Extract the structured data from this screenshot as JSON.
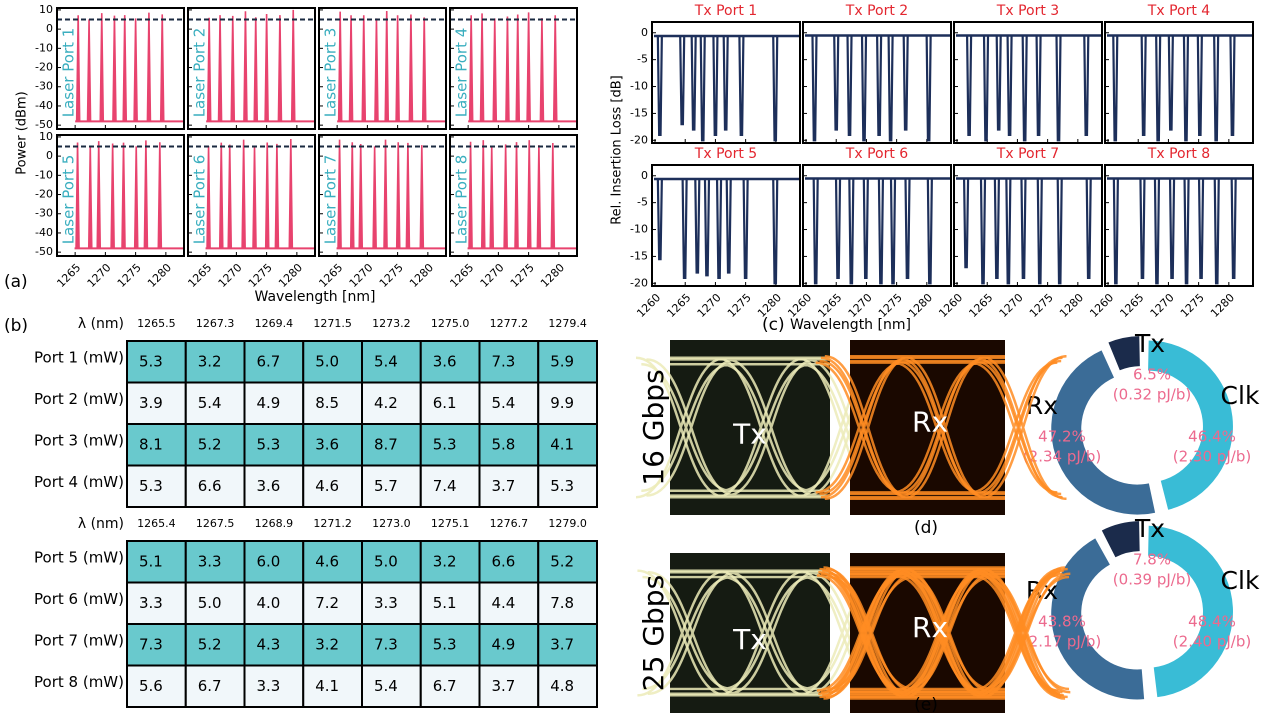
{
  "panels": {
    "a": {
      "label": "(a)",
      "ylabel": "Power (dBm)",
      "xlabel": "Wavelength [nm]"
    },
    "c": {
      "label": "(c)",
      "ylabel": "Rel. Insertion Loss [dB]",
      "xlabel": "Wavelength [nm]"
    }
  },
  "chart_data": [
    {
      "type": "spectrum",
      "label": "Laser Port 1",
      "x": [
        1265.5,
        1267.3,
        1269.4,
        1271.5,
        1273.2,
        1275.0,
        1277.2,
        1279.4
      ],
      "values": [
        7.2,
        5.1,
        8.3,
        7.0,
        7.3,
        5.6,
        8.6,
        7.7
      ],
      "noise_floor": -48,
      "hline": 5,
      "color": "#e8436e",
      "xlim": [
        1262,
        1283
      ],
      "ylim": [
        -52,
        11
      ],
      "xticks": [
        1265,
        1270,
        1275,
        1280
      ],
      "yticks": [
        -50,
        -40,
        -30,
        -20,
        -10,
        0,
        10
      ]
    },
    {
      "type": "spectrum",
      "label": "Laser Port 2",
      "x": [
        1265.5,
        1267.3,
        1269.4,
        1271.5,
        1273.2,
        1275.0,
        1277.2,
        1279.4
      ],
      "values": [
        5.9,
        7.3,
        6.9,
        9.3,
        6.2,
        7.9,
        7.3,
        10
      ],
      "noise_floor": -48,
      "hline": 5,
      "color": "#e8436e",
      "xlim": [
        1262,
        1283
      ],
      "ylim": [
        -52,
        11
      ],
      "xticks": [
        1265,
        1270,
        1275,
        1280
      ],
      "yticks": [
        -50,
        -40,
        -30,
        -20,
        -10,
        0,
        10
      ]
    },
    {
      "type": "spectrum",
      "label": "Laser Port 3",
      "x": [
        1265.5,
        1267.3,
        1269.4,
        1271.5,
        1273.2,
        1275.0,
        1277.2,
        1279.4
      ],
      "values": [
        9.1,
        7.2,
        7.2,
        5.6,
        9.4,
        7.2,
        7.6,
        6.1
      ],
      "noise_floor": -48,
      "hline": 5,
      "color": "#e8436e",
      "xlim": [
        1262,
        1283
      ],
      "ylim": [
        -52,
        11
      ],
      "xticks": [
        1265,
        1270,
        1275,
        1280
      ],
      "yticks": [
        -50,
        -40,
        -30,
        -20,
        -10,
        0,
        10
      ]
    },
    {
      "type": "spectrum",
      "label": "Laser Port 4",
      "x": [
        1265.5,
        1267.3,
        1269.4,
        1271.5,
        1273.2,
        1275.0,
        1277.2,
        1279.4
      ],
      "values": [
        7.2,
        8.2,
        5.6,
        6.6,
        7.6,
        8.7,
        5.7,
        7.2
      ],
      "noise_floor": -48,
      "hline": 5,
      "color": "#e8436e",
      "xlim": [
        1262,
        1283
      ],
      "ylim": [
        -52,
        11
      ],
      "xticks": [
        1265,
        1270,
        1275,
        1280
      ],
      "yticks": [
        -50,
        -40,
        -30,
        -20,
        -10,
        0,
        10
      ]
    },
    {
      "type": "spectrum",
      "label": "Laser Port 5",
      "x": [
        1265.4,
        1267.5,
        1268.9,
        1271.2,
        1273.0,
        1275.1,
        1276.7,
        1279.0
      ],
      "values": [
        7.1,
        5.2,
        7.8,
        6.6,
        7.0,
        5.1,
        8.2,
        7.2
      ],
      "noise_floor": -48,
      "hline": 5,
      "color": "#e8436e",
      "xlim": [
        1262,
        1283
      ],
      "ylim": [
        -52,
        11
      ],
      "xticks": [
        1265,
        1270,
        1275,
        1280
      ],
      "yticks": [
        -50,
        -40,
        -30,
        -20,
        -10,
        0,
        10
      ]
    },
    {
      "type": "spectrum",
      "label": "Laser Port 6",
      "x": [
        1265.4,
        1267.5,
        1268.9,
        1271.2,
        1273.0,
        1275.1,
        1276.7,
        1279.0
      ],
      "values": [
        5.2,
        7.0,
        6.0,
        8.6,
        5.2,
        7.1,
        6.4,
        8.9
      ],
      "noise_floor": -48,
      "hline": 5,
      "color": "#e8436e",
      "xlim": [
        1262,
        1283
      ],
      "ylim": [
        -52,
        11
      ],
      "xticks": [
        1265,
        1270,
        1275,
        1280
      ],
      "yticks": [
        -50,
        -40,
        -30,
        -20,
        -10,
        0,
        10
      ]
    },
    {
      "type": "spectrum",
      "label": "Laser Port 7",
      "x": [
        1265.4,
        1267.5,
        1268.9,
        1271.2,
        1273.0,
        1275.1,
        1276.7,
        1279.0
      ],
      "values": [
        8.6,
        7.2,
        6.3,
        5.1,
        8.6,
        7.2,
        6.9,
        5.7
      ],
      "noise_floor": -48,
      "hline": 5,
      "color": "#e8436e",
      "xlim": [
        1262,
        1283
      ],
      "ylim": [
        -52,
        11
      ],
      "xticks": [
        1265,
        1270,
        1275,
        1280
      ],
      "yticks": [
        -50,
        -40,
        -30,
        -20,
        -10,
        0,
        10
      ]
    },
    {
      "type": "spectrum",
      "label": "Laser Port 8",
      "x": [
        1265.4,
        1267.5,
        1268.9,
        1271.2,
        1273.0,
        1275.1,
        1276.7,
        1279.0
      ],
      "values": [
        7.5,
        8.3,
        5.2,
        6.1,
        7.3,
        8.3,
        5.7,
        6.8
      ],
      "noise_floor": -48,
      "hline": 5,
      "color": "#e8436e",
      "xlim": [
        1262,
        1283
      ],
      "ylim": [
        -52,
        11
      ],
      "xticks": [
        1265,
        1270,
        1275,
        1280
      ],
      "yticks": [
        -50,
        -40,
        -30,
        -20,
        -10,
        0,
        10
      ]
    },
    {
      "type": "dips",
      "title": "Tx Port 1",
      "x": [
        1260.8,
        1264.5,
        1266.4,
        1267.9,
        1270.0,
        1271.7,
        1274.3,
        1279.9
      ],
      "values": [
        -19,
        -17,
        -18,
        -20,
        -19,
        -18,
        -19,
        -20
      ],
      "baseline": -0.6,
      "color": "#1d2f5a",
      "xlim": [
        1259.5,
        1284
      ],
      "ylim": [
        -20.5,
        2
      ],
      "xticks": [
        1260,
        1265,
        1270,
        1275,
        1280
      ],
      "yticks": [
        0,
        -5,
        -10,
        -15,
        -20
      ]
    },
    {
      "type": "dips",
      "title": "Tx Port 2",
      "x": [
        1261.4,
        1265.0,
        1267.2,
        1269.6,
        1272.1,
        1274.0,
        1276.5,
        1280.3
      ],
      "values": [
        -20,
        -18,
        -19,
        -20,
        -19,
        -20,
        -18,
        -20
      ],
      "baseline": -0.5,
      "color": "#1d2f5a",
      "xlim": [
        1259.5,
        1284
      ],
      "ylim": [
        -20.5,
        2
      ],
      "xticks": [
        1260,
        1265,
        1270,
        1275,
        1280
      ],
      "yticks": [
        0,
        -5,
        -10,
        -15,
        -20
      ]
    },
    {
      "type": "dips",
      "title": "Tx Port 3",
      "x": [
        1262.0,
        1264.8,
        1266.9,
        1268.7,
        1271.2,
        1273.5,
        1276.8,
        1281.4
      ],
      "values": [
        -19,
        -20,
        -18,
        -19,
        -20,
        -19,
        -20,
        -19
      ],
      "baseline": -0.5,
      "color": "#1d2f5a",
      "xlim": [
        1259.5,
        1284
      ],
      "ylim": [
        -20.5,
        2
      ],
      "xticks": [
        1260,
        1265,
        1270,
        1275,
        1280
      ],
      "yticks": [
        0,
        -5,
        -10,
        -15,
        -20
      ]
    },
    {
      "type": "dips",
      "title": "Tx Port 4",
      "x": [
        1261.2,
        1265.9,
        1268.3,
        1270.4,
        1272.9,
        1275.2,
        1277.9,
        1280.6
      ],
      "values": [
        -20,
        -19,
        -20,
        -18,
        -20,
        -19,
        -20,
        -19
      ],
      "baseline": -0.5,
      "color": "#1d2f5a",
      "xlim": [
        1259.5,
        1284
      ],
      "ylim": [
        -20.5,
        2
      ],
      "xticks": [
        1260,
        1265,
        1270,
        1275,
        1280
      ],
      "yticks": [
        0,
        -5,
        -10,
        -15,
        -20
      ]
    },
    {
      "type": "dips",
      "title": "Tx Port 5",
      "x": [
        1260.8,
        1264.9,
        1267.0,
        1268.6,
        1270.6,
        1272.2,
        1275.0,
        1279.9
      ],
      "values": [
        -15.5,
        -19,
        -18,
        -18.5,
        -19,
        -18,
        -19,
        -20
      ],
      "baseline": -0.6,
      "color": "#1d2f5a",
      "xlim": [
        1259.5,
        1284
      ],
      "ylim": [
        -20.5,
        2
      ],
      "xticks": [
        1260,
        1265,
        1270,
        1275,
        1280
      ],
      "yticks": [
        0,
        -5,
        -10,
        -15,
        -20
      ]
    },
    {
      "type": "dips",
      "title": "Tx Port 6",
      "x": [
        1261.6,
        1265.3,
        1267.5,
        1269.9,
        1272.4,
        1274.4,
        1276.8,
        1280.5
      ],
      "values": [
        -20,
        -19,
        -20,
        -19,
        -20,
        -20,
        -19,
        -20
      ],
      "baseline": -0.5,
      "color": "#1d2f5a",
      "xlim": [
        1259.5,
        1284
      ],
      "ylim": [
        -20.5,
        2
      ],
      "xticks": [
        1260,
        1265,
        1270,
        1275,
        1280
      ],
      "yticks": [
        0,
        -5,
        -10,
        -15,
        -20
      ]
    },
    {
      "type": "dips",
      "title": "Tx Port 7",
      "x": [
        1261.5,
        1264.3,
        1266.6,
        1268.5,
        1271.0,
        1273.7,
        1277.0,
        1281.8
      ],
      "values": [
        -17,
        -20,
        -19,
        -20,
        -19,
        -20,
        -20,
        -19
      ],
      "baseline": -0.5,
      "color": "#1d2f5a",
      "xlim": [
        1259.5,
        1284
      ],
      "ylim": [
        -20.5,
        2
      ],
      "xticks": [
        1260,
        1265,
        1270,
        1275,
        1280
      ],
      "yticks": [
        0,
        -5,
        -10,
        -15,
        -20
      ]
    },
    {
      "type": "dips",
      "title": "Tx Port 8",
      "x": [
        1261.3,
        1265.7,
        1268.1,
        1270.6,
        1273.0,
        1275.4,
        1278.0,
        1280.8
      ],
      "values": [
        -20,
        -19,
        -20,
        -19,
        -20,
        -19,
        -20,
        -19
      ],
      "baseline": -0.5,
      "color": "#1d2f5a",
      "xlim": [
        1259.5,
        1284
      ],
      "ylim": [
        -20.5,
        2
      ],
      "xticks": [
        1260,
        1265,
        1270,
        1275,
        1280
      ],
      "yticks": [
        0,
        -5,
        -10,
        -15,
        -20
      ]
    },
    {
      "type": "pie",
      "categories": [
        "Tx",
        "Rx",
        "Clk"
      ],
      "values": [
        6.5,
        47.2,
        46.4
      ],
      "value_labels": [
        "6.5%",
        "47.2%",
        "46.4%"
      ],
      "energy_labels": [
        "(0.32 pJ/b)",
        "(2.34 pJ/b)",
        "(2.30 pJ/b)"
      ],
      "colors": [
        "#1b2b4b",
        "#3b6c97",
        "#39bcd6"
      ]
    },
    {
      "type": "pie",
      "categories": [
        "Tx",
        "Rx",
        "Clk"
      ],
      "values": [
        7.8,
        43.8,
        48.4
      ],
      "value_labels": [
        "7.8%",
        "43.8%",
        "48.4%"
      ],
      "energy_labels": [
        "(0.39 pJ/b)",
        "(2.17 pJ/b)",
        "(2.40 pJ/b)"
      ],
      "colors": [
        "#1b2b4b",
        "#3b6c97",
        "#39bcd6"
      ]
    }
  ],
  "table": {
    "label": "(b)",
    "blocks": [
      {
        "header": "λ (nm)",
        "wavelengths": [
          "1265.5",
          "1267.3",
          "1269.4",
          "1271.5",
          "1273.2",
          "1275.0",
          "1277.2",
          "1279.4"
        ],
        "rows": [
          {
            "port": "Port 1 (mW)",
            "values": [
              "5.3",
              "3.2",
              "6.7",
              "5.0",
              "5.4",
              "3.6",
              "7.3",
              "5.9"
            ]
          },
          {
            "port": "Port 2 (mW)",
            "values": [
              "3.9",
              "5.4",
              "4.9",
              "8.5",
              "4.2",
              "6.1",
              "5.4",
              "9.9"
            ]
          },
          {
            "port": "Port 3 (mW)",
            "values": [
              "8.1",
              "5.2",
              "5.3",
              "3.6",
              "8.7",
              "5.3",
              "5.8",
              "4.1"
            ]
          },
          {
            "port": "Port 4 (mW)",
            "values": [
              "5.3",
              "6.6",
              "3.6",
              "4.6",
              "5.7",
              "7.4",
              "3.7",
              "5.3"
            ]
          }
        ]
      },
      {
        "header": "λ (nm)",
        "wavelengths": [
          "1265.4",
          "1267.5",
          "1268.9",
          "1271.2",
          "1273.0",
          "1275.1",
          "1276.7",
          "1279.0"
        ],
        "rows": [
          {
            "port": "Port 5 (mW)",
            "values": [
              "5.1",
              "3.3",
              "6.0",
              "4.6",
              "5.0",
              "3.2",
              "6.6",
              "5.2"
            ]
          },
          {
            "port": "Port 6 (mW)",
            "values": [
              "3.3",
              "5.0",
              "4.0",
              "7.2",
              "3.3",
              "5.1",
              "4.4",
              "7.8"
            ]
          },
          {
            "port": "Port 7 (mW)",
            "values": [
              "7.3",
              "5.2",
              "4.3",
              "3.2",
              "7.3",
              "5.3",
              "4.9",
              "3.7"
            ]
          },
          {
            "port": "Port 8 (mW)",
            "values": [
              "5.6",
              "6.7",
              "3.3",
              "4.1",
              "5.4",
              "6.7",
              "3.7",
              "4.8"
            ]
          }
        ]
      }
    ]
  },
  "eyes": [
    {
      "rate": "16 Gbps",
      "tx": "Tx",
      "rx": "Rx",
      "label": "(d)"
    },
    {
      "rate": "25 Gbps",
      "tx": "Tx",
      "rx": "Rx",
      "label": "(e)"
    }
  ]
}
